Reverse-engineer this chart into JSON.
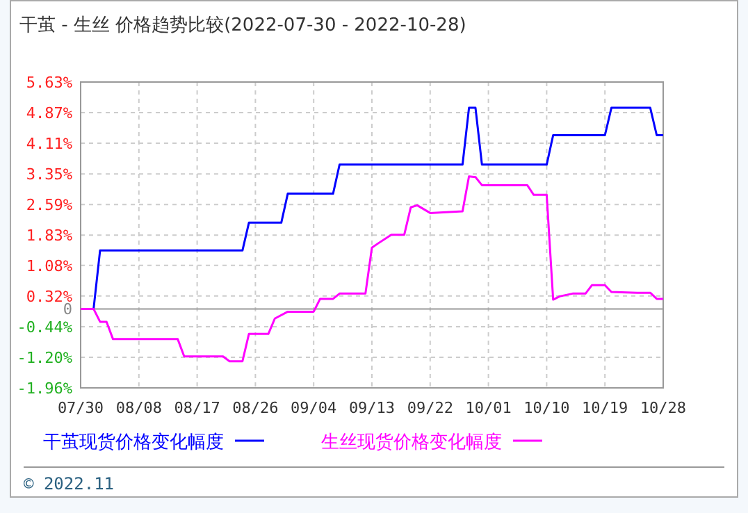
{
  "chart_data": {
    "type": "line",
    "title": "干茧 - 生丝 价格趋势比较(2022-07-30 - 2022-10-28)",
    "xlim": [
      "--07-30",
      "--10-28"
    ],
    "xticks": [
      {
        "value": "--07-30",
        "label": "07/30"
      },
      {
        "value": "--08-08",
        "label": "08/08"
      },
      {
        "value": "--08-17",
        "label": "08/17"
      },
      {
        "value": "--08-26",
        "label": "08/26"
      },
      {
        "value": "--09-04",
        "label": "09/04"
      },
      {
        "value": "--09-13",
        "label": "09/13"
      },
      {
        "value": "--09-22",
        "label": "09/22"
      },
      {
        "value": "--10-01",
        "label": "10/01"
      },
      {
        "value": "--10-10",
        "label": "10/10"
      },
      {
        "value": "--10-19",
        "label": "10/19"
      },
      {
        "value": "--10-28",
        "label": "10/28"
      }
    ],
    "ylim": [
      -1.96,
      5.63
    ],
    "yticks": [
      {
        "value": -1.96,
        "label": "-1.96%"
      },
      {
        "value": -1.2,
        "label": "-1.20%"
      },
      {
        "value": -0.44,
        "label": "-0.44%"
      },
      {
        "value": 0,
        "label": "0"
      },
      {
        "value": 0.32,
        "label": "0.32%"
      },
      {
        "value": 1.08,
        "label": "1.08%"
      },
      {
        "value": 1.83,
        "label": "1.83%"
      },
      {
        "value": 2.59,
        "label": "2.59%"
      },
      {
        "value": 3.35,
        "label": "3.35%"
      },
      {
        "value": 4.11,
        "label": "4.11%"
      },
      {
        "value": 4.87,
        "label": "4.87%"
      },
      {
        "value": 5.63,
        "label": "5.63%"
      }
    ],
    "grid": true,
    "legend": "bottom",
    "marker": "none",
    "line_style": "solid",
    "series": [
      {
        "name": "干茧现货价格变化幅度",
        "color": "#0000ff",
        "x": [
          "--07-30",
          "--08-01",
          "--08-02",
          "--08-24",
          "--08-25",
          "--08-30",
          "--08-31",
          "--09-07",
          "--09-08",
          "--09-27",
          "--09-28",
          "--09-29",
          "--09-30",
          "--10-10",
          "--10-11",
          "--10-19",
          "--10-20",
          "--10-26",
          "--10-27",
          "--10-28"
        ],
        "values": [
          0,
          0,
          1.45,
          1.45,
          2.14,
          2.14,
          2.86,
          2.86,
          3.58,
          3.58,
          4.99,
          4.99,
          3.58,
          3.58,
          4.31,
          4.31,
          4.99,
          4.99,
          4.31,
          4.31
        ]
      },
      {
        "name": "生丝现货价格变化幅度",
        "color": "#ff00ff",
        "x": [
          "--07-30",
          "--08-01",
          "--08-02",
          "--08-03",
          "--08-04",
          "--08-14",
          "--08-15",
          "--08-21",
          "--08-22",
          "--08-24",
          "--08-25",
          "--08-28",
          "--08-29",
          "--08-31",
          "--09-04",
          "--09-05",
          "--09-07",
          "--09-08",
          "--09-12",
          "--09-13",
          "--09-14",
          "--09-16",
          "--09-18",
          "--09-19",
          "--09-20",
          "--09-22",
          "--09-27",
          "--09-28",
          "--09-29",
          "--09-30",
          "--10-07",
          "--10-08",
          "--10-10",
          "--10-11",
          "--10-12",
          "--10-14",
          "--10-16",
          "--10-17",
          "--10-19",
          "--10-20",
          "--10-24",
          "--10-26",
          "--10-27",
          "--10-28"
        ],
        "values": [
          0,
          0,
          -0.32,
          -0.32,
          -0.75,
          -0.75,
          -1.18,
          -1.18,
          -1.3,
          -1.3,
          -0.62,
          -0.62,
          -0.24,
          -0.07,
          -0.07,
          0.25,
          0.25,
          0.38,
          0.38,
          1.52,
          1.63,
          1.84,
          1.84,
          2.52,
          2.57,
          2.38,
          2.42,
          3.29,
          3.27,
          3.07,
          3.07,
          2.83,
          2.83,
          0.23,
          0.31,
          0.38,
          0.38,
          0.59,
          0.59,
          0.42,
          0.4,
          0.4,
          0.25,
          0.25
        ]
      }
    ],
    "annotations": [
      "© 2022.11"
    ]
  }
}
